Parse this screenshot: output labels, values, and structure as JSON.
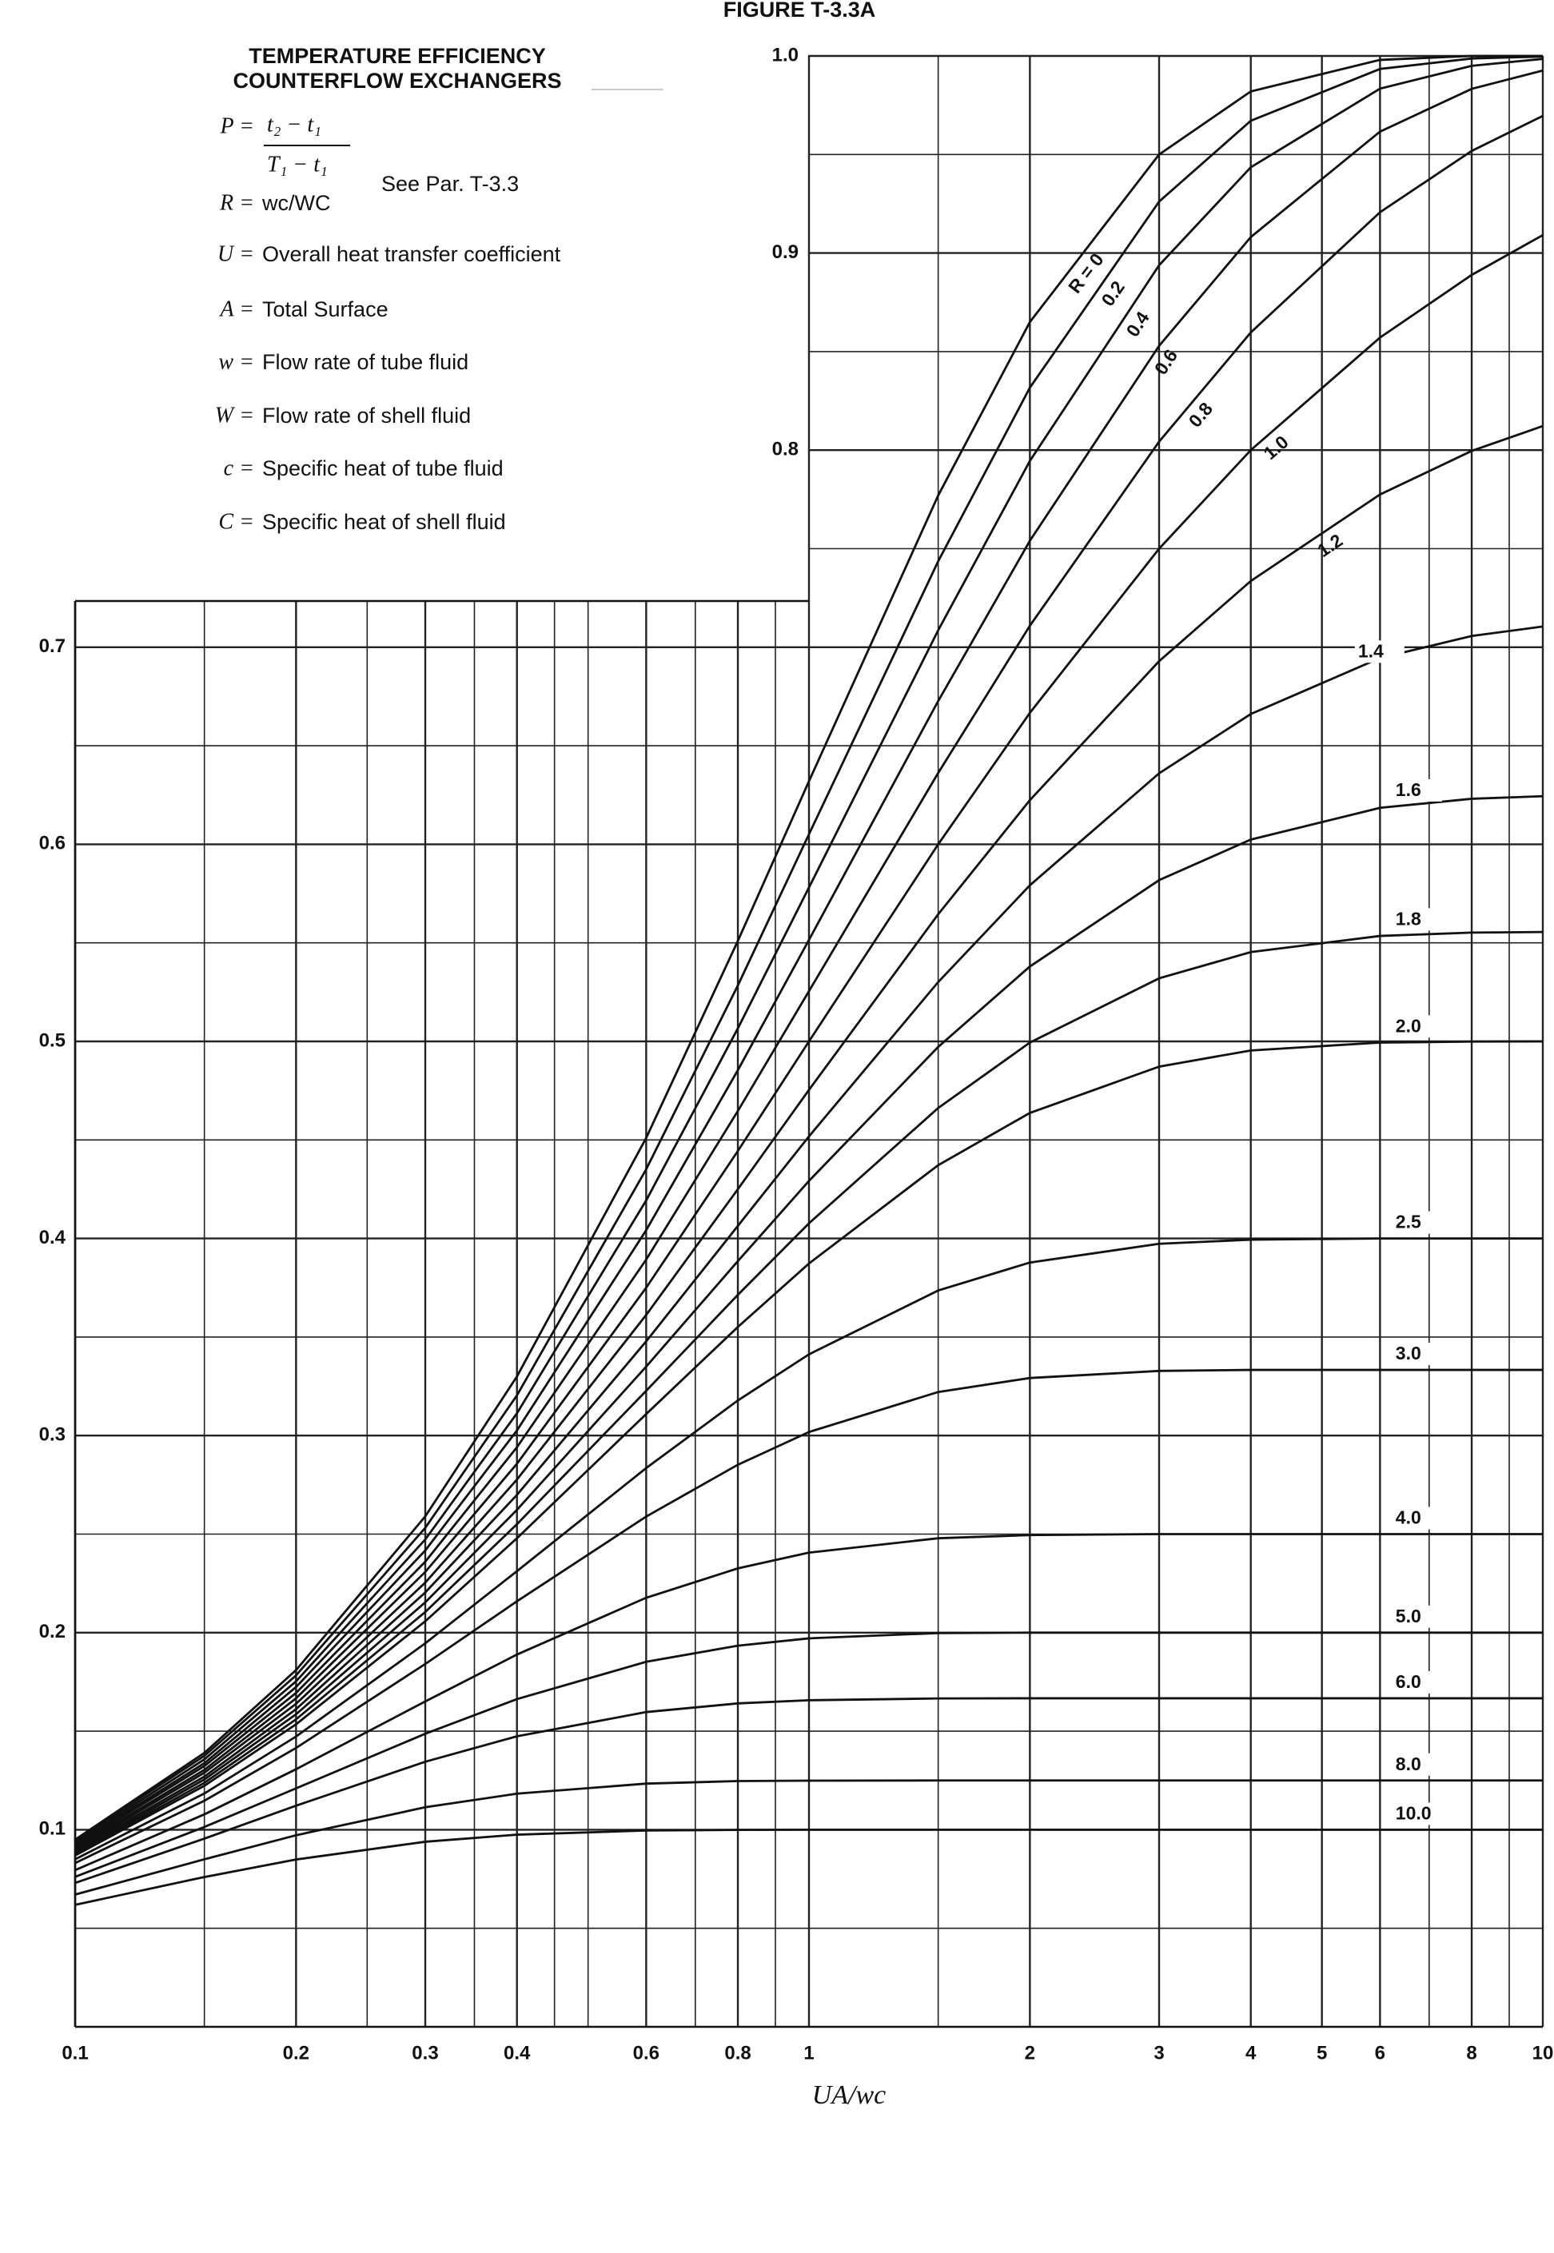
{
  "chart_data": {
    "type": "line",
    "title": "FIGURE T-3.3A",
    "legend_title": [
      "TEMPERATURE EFFICIENCY",
      "COUNTERFLOW EXCHANGERS"
    ],
    "definitions": [
      {
        "symbol": "P =",
        "numerator": "t₂ − t₁",
        "denominator": "T₁ − t₁"
      },
      {
        "symbol": "R =",
        "text": "wc/WC"
      },
      {
        "symbol": "U =",
        "text": "Overall heat transfer coefficient"
      },
      {
        "symbol": "A =",
        "text": "Total Surface"
      },
      {
        "symbol": "w =",
        "text": "Flow rate of tube fluid"
      },
      {
        "symbol": "W =",
        "text": "Flow rate of shell fluid"
      },
      {
        "symbol": "c =",
        "text": "Specific heat of tube fluid"
      },
      {
        "symbol": "C =",
        "text": "Specific heat of shell fluid"
      }
    ],
    "note": "See Par. T-3.3",
    "xlabel": "UA/wc",
    "xscale": "log",
    "grid": true,
    "color": "#111111",
    "xlim": [
      0.1,
      10
    ],
    "ylim": [
      0,
      1
    ],
    "xticks": [
      0.1,
      0.2,
      0.3,
      0.4,
      0.6,
      0.8,
      1,
      2,
      3,
      4,
      5,
      6,
      8,
      10
    ],
    "yticks": [
      0.1,
      0.2,
      0.3,
      0.4,
      0.5,
      0.6,
      0.7,
      0.8,
      0.9,
      {
        "value": 1,
        "label": "1.0"
      }
    ],
    "xminor": [
      0.15,
      0.25,
      0.35,
      0.45,
      0.5,
      0.7,
      0.9,
      1.5,
      7,
      9
    ],
    "yminor": [
      0.05,
      0.15,
      0.25,
      0.35,
      0.45,
      0.55,
      0.65,
      0.75,
      0.85,
      0.95
    ],
    "x": [
      0.1,
      0.15,
      0.2,
      0.3,
      0.4,
      0.6,
      0.8,
      1,
      1.5,
      2,
      3,
      4,
      6,
      8,
      10
    ],
    "series": [
      {
        "name": "R = 0",
        "values": [
          0.095,
          0.139,
          0.181,
          0.259,
          0.33,
          0.451,
          0.551,
          0.632,
          0.777,
          0.865,
          0.95,
          0.982,
          0.998,
          1.0,
          1.0
        ]
      },
      {
        "name": "0.2",
        "values": [
          0.0943,
          0.1375,
          0.1783,
          0.2532,
          0.3204,
          0.4351,
          0.5284,
          0.6051,
          0.7436,
          0.8317,
          0.9261,
          0.9671,
          0.9934,
          0.9987,
          0.9997
        ]
      },
      {
        "name": "0.4",
        "values": [
          0.0934,
          0.1357,
          0.1753,
          0.2473,
          0.3113,
          0.4193,
          0.5066,
          0.5781,
          0.7086,
          0.7945,
          0.8938,
          0.9435,
          0.9834,
          0.995,
          0.9985
        ]
      },
      {
        "name": "0.6",
        "values": [
          0.0926,
          0.1338,
          0.1724,
          0.2417,
          0.3026,
          0.4042,
          0.4854,
          0.5515,
          0.6727,
          0.754,
          0.8529,
          0.9081,
          0.9616,
          0.9833,
          0.9926
        ]
      },
      {
        "name": "0.8",
        "values": [
          0.0918,
          0.1323,
          0.1694,
          0.236,
          0.2941,
          0.3893,
          0.4647,
          0.5255,
          0.6362,
          0.7109,
          0.8043,
          0.8597,
          0.9207,
          0.9518,
          0.9696
        ]
      },
      {
        "name": "1.0",
        "values": [
          0.0909,
          0.1304,
          0.1667,
          0.2308,
          0.2857,
          0.375,
          0.4444,
          0.5,
          0.6,
          0.6667,
          0.75,
          0.8,
          0.8571,
          0.8889,
          0.9091
        ]
      },
      {
        "name": "1.2",
        "values": [
          0.0901,
          0.1289,
          0.1639,
          0.2254,
          0.2777,
          0.3612,
          0.425,
          0.4754,
          0.5645,
          0.6224,
          0.6929,
          0.7336,
          0.7775,
          0.7996,
          0.8122
        ]
      },
      {
        "name": "1.4",
        "values": [
          0.0893,
          0.127,
          0.1612,
          0.2204,
          0.2699,
          0.3478,
          0.4064,
          0.4518,
          0.5301,
          0.5792,
          0.636,
          0.6661,
          0.6945,
          0.7057,
          0.7105
        ]
      },
      {
        "name": "1.6",
        "values": [
          0.0884,
          0.1255,
          0.1586,
          0.2154,
          0.2623,
          0.335,
          0.3885,
          0.4292,
          0.4972,
          0.538,
          0.5818,
          0.6024,
          0.6185,
          0.6231,
          0.6244
        ]
      },
      {
        "name": "1.8",
        "values": [
          0.0877,
          0.1238,
          0.156,
          0.2105,
          0.255,
          0.3227,
          0.3714,
          0.4077,
          0.4662,
          0.4994,
          0.532,
          0.5453,
          0.5535,
          0.5552,
          0.5555
        ]
      },
      {
        "name": "2.0",
        "values": [
          0.0869,
          0.1223,
          0.1535,
          0.2058,
          0.2479,
          0.3109,
          0.3551,
          0.3873,
          0.4372,
          0.4637,
          0.4872,
          0.4954,
          0.4994,
          0.4999,
          0.5
        ]
      },
      {
        "name": "2.5",
        "values": [
          0.085,
          0.1184,
          0.1473,
          0.1946,
          0.2312,
          0.2835,
          0.3178,
          0.3412,
          0.3736,
          0.3878,
          0.3973,
          0.3994,
          0.4,
          0.4,
          0.4
        ]
      },
      {
        "name": "3.0",
        "values": [
          0.0831,
          0.1147,
          0.1415,
          0.1841,
          0.2159,
          0.2589,
          0.2852,
          0.3018,
          0.3221,
          0.3292,
          0.3328,
          0.3333,
          0.3333,
          0.3333,
          0.3333
        ]
      },
      {
        "name": "4.0",
        "values": [
          0.0795,
          0.1078,
          0.1307,
          0.1651,
          0.1889,
          0.2177,
          0.2326,
          0.2406,
          0.2479,
          0.2495,
          0.25,
          0.25,
          0.25,
          0.25,
          0.25
        ]
      },
      {
        "name": "5.0",
        "values": [
          0.0761,
          0.1014,
          0.121,
          0.1487,
          0.1663,
          0.1852,
          0.1934,
          0.1971,
          0.1998,
          0.2,
          0.2,
          0.2,
          0.2,
          0.2,
          0.2
        ]
      },
      {
        "name": "6.0",
        "values": [
          0.073,
          0.0955,
          0.1122,
          0.1345,
          0.1474,
          0.1597,
          0.1641,
          0.1657,
          0.1666,
          0.1667,
          0.1667,
          0.1667,
          0.1667,
          0.1667,
          0.1667
        ]
      },
      {
        "name": "8.0",
        "values": [
          0.0671,
          0.085,
          0.0972,
          0.1114,
          0.1183,
          0.1234,
          0.1247,
          0.1249,
          0.125,
          0.125,
          0.125,
          0.125,
          0.125,
          0.125,
          0.125
        ]
      },
      {
        "name": "10.0",
        "values": [
          0.0619,
          0.076,
          0.0849,
          0.0939,
          0.0975,
          0.0996,
          0.0999,
          0.1,
          0.1,
          0.1,
          0.1,
          0.1,
          0.1,
          0.1,
          0.1
        ]
      }
    ]
  }
}
